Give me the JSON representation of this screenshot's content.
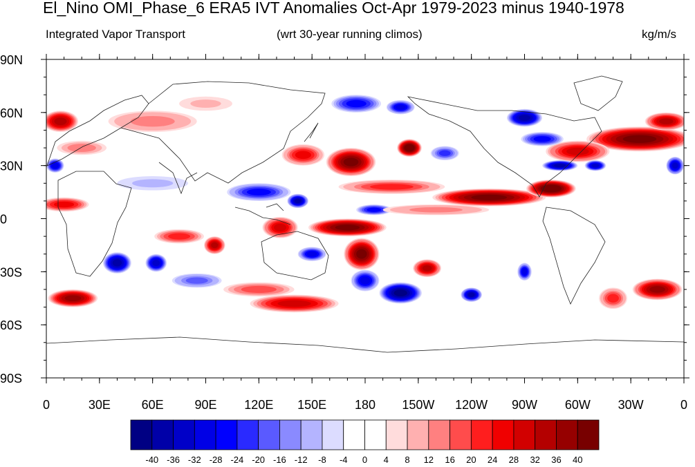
{
  "chart_data": {
    "type": "heatmap",
    "title": "El_Nino OMI_Phase_6 ERA5 IVT Anomalies Oct-Apr 1979-2023 minus 1940-1978",
    "left_subtitle": "Integrated Vapor Transport",
    "center_subtitle": "(wrt 30-year running climos)",
    "units": "kg/m/s",
    "x_ticks": [
      "0",
      "30E",
      "60E",
      "90E",
      "120E",
      "150E",
      "180",
      "150W",
      "120W",
      "90W",
      "60W",
      "30W",
      "0"
    ],
    "x_tick_lon": [
      0,
      30,
      60,
      90,
      120,
      150,
      180,
      210,
      240,
      270,
      300,
      330,
      360
    ],
    "y_ticks": [
      "90N",
      "60N",
      "30N",
      "0",
      "30S",
      "60S",
      "90S"
    ],
    "y_tick_lat": [
      90,
      60,
      30,
      0,
      -30,
      -60,
      -90
    ],
    "xlim": [
      0,
      360
    ],
    "ylim": [
      -90,
      90
    ],
    "colorbar_levels": [
      "-40",
      "-36",
      "-32",
      "-28",
      "-24",
      "-20",
      "-16",
      "-12",
      "-8",
      "-4",
      "0",
      "4",
      "8",
      "12",
      "16",
      "20",
      "24",
      "28",
      "32",
      "36",
      "40"
    ],
    "colorbar_colors": [
      "#000083",
      "#0000a8",
      "#0000c8",
      "#0000e6",
      "#0000ff",
      "#2a2aff",
      "#5a5aff",
      "#8a8aff",
      "#b4b4ff",
      "#dcdcff",
      "#ffffff",
      "#ffffff",
      "#ffdcdc",
      "#ffb0b0",
      "#ff8080",
      "#ff4c4c",
      "#ff1e1e",
      "#f00000",
      "#d20000",
      "#b40000",
      "#960000",
      "#780000"
    ],
    "anomaly_features": [
      {
        "lon": 172,
        "lat": 32,
        "w": 14,
        "h": 8,
        "value": 42
      },
      {
        "lon": 145,
        "lat": 36,
        "w": 12,
        "h": 6,
        "value": 26
      },
      {
        "lon": 205,
        "lat": 40,
        "w": 7,
        "h": 5,
        "value": 44
      },
      {
        "lon": 195,
        "lat": 18,
        "w": 30,
        "h": 4,
        "value": 22
      },
      {
        "lon": 250,
        "lat": 12,
        "w": 32,
        "h": 5,
        "value": 40
      },
      {
        "lon": 285,
        "lat": 17,
        "w": 14,
        "h": 5,
        "value": 44
      },
      {
        "lon": 335,
        "lat": 45,
        "w": 30,
        "h": 7,
        "value": 40
      },
      {
        "lon": 300,
        "lat": 38,
        "w": 18,
        "h": 6,
        "value": 30
      },
      {
        "lon": 350,
        "lat": 55,
        "w": 12,
        "h": 5,
        "value": 34
      },
      {
        "lon": 8,
        "lat": 55,
        "w": 10,
        "h": 6,
        "value": 32
      },
      {
        "lon": 170,
        "lat": -5,
        "w": 22,
        "h": 5,
        "value": 40
      },
      {
        "lon": 178,
        "lat": -20,
        "w": 10,
        "h": 9,
        "value": 42
      },
      {
        "lon": 132,
        "lat": -5,
        "w": 10,
        "h": 6,
        "value": 30
      },
      {
        "lon": 75,
        "lat": -10,
        "w": 14,
        "h": 4,
        "value": 20
      },
      {
        "lon": 95,
        "lat": -15,
        "w": 6,
        "h": 5,
        "value": 34
      },
      {
        "lon": 215,
        "lat": -28,
        "w": 8,
        "h": 5,
        "value": 34
      },
      {
        "lon": 15,
        "lat": -45,
        "w": 14,
        "h": 5,
        "value": 36
      },
      {
        "lon": 140,
        "lat": -48,
        "w": 25,
        "h": 5,
        "value": 28
      },
      {
        "lon": 345,
        "lat": -40,
        "w": 14,
        "h": 6,
        "value": 38
      },
      {
        "lon": 320,
        "lat": -45,
        "w": 8,
        "h": 6,
        "value": 22
      },
      {
        "lon": 10,
        "lat": 8,
        "w": 14,
        "h": 4,
        "value": 24
      },
      {
        "lon": 60,
        "lat": 55,
        "w": 25,
        "h": 6,
        "value": 14
      },
      {
        "lon": 200,
        "lat": -42,
        "w": 12,
        "h": 6,
        "value": -40
      },
      {
        "lon": 180,
        "lat": -35,
        "w": 8,
        "h": 6,
        "value": -30
      },
      {
        "lon": 240,
        "lat": -43,
        "w": 6,
        "h": 4,
        "value": -38
      },
      {
        "lon": 40,
        "lat": -25,
        "w": 8,
        "h": 6,
        "value": -36
      },
      {
        "lon": 62,
        "lat": -25,
        "w": 6,
        "h": 5,
        "value": -32
      },
      {
        "lon": 120,
        "lat": 15,
        "w": 18,
        "h": 5,
        "value": -26
      },
      {
        "lon": 142,
        "lat": 10,
        "w": 6,
        "h": 4,
        "value": -38
      },
      {
        "lon": 290,
        "lat": 30,
        "w": 10,
        "h": 3,
        "value": -36
      },
      {
        "lon": 310,
        "lat": 30,
        "w": 6,
        "h": 3,
        "value": -32
      },
      {
        "lon": 355,
        "lat": 30,
        "w": 5,
        "h": 5,
        "value": -34
      },
      {
        "lon": 5,
        "lat": 30,
        "w": 5,
        "h": 4,
        "value": -28
      },
      {
        "lon": 270,
        "lat": 57,
        "w": 10,
        "h": 5,
        "value": -36
      },
      {
        "lon": 280,
        "lat": 45,
        "w": 12,
        "h": 4,
        "value": -24
      },
      {
        "lon": 175,
        "lat": 65,
        "w": 14,
        "h": 5,
        "value": -24
      },
      {
        "lon": 200,
        "lat": 63,
        "w": 8,
        "h": 4,
        "value": -30
      },
      {
        "lon": 185,
        "lat": 5,
        "w": 10,
        "h": 3,
        "value": -24
      },
      {
        "lon": 150,
        "lat": -20,
        "w": 8,
        "h": 4,
        "value": -30
      },
      {
        "lon": 270,
        "lat": -30,
        "w": 4,
        "h": 5,
        "value": -30
      },
      {
        "lon": 85,
        "lat": -35,
        "w": 14,
        "h": 4,
        "value": -18
      },
      {
        "lon": 225,
        "lat": 37,
        "w": 8,
        "h": 4,
        "value": -22
      },
      {
        "lon": 60,
        "lat": 20,
        "w": 20,
        "h": 4,
        "value": -10
      },
      {
        "lon": 20,
        "lat": 40,
        "w": 14,
        "h": 4,
        "value": 12
      },
      {
        "lon": 120,
        "lat": -40,
        "w": 20,
        "h": 4,
        "value": 16
      },
      {
        "lon": 220,
        "lat": 5,
        "w": 30,
        "h": 3,
        "value": 14
      },
      {
        "lon": 90,
        "lat": 65,
        "w": 15,
        "h": 4,
        "value": 10
      }
    ]
  }
}
